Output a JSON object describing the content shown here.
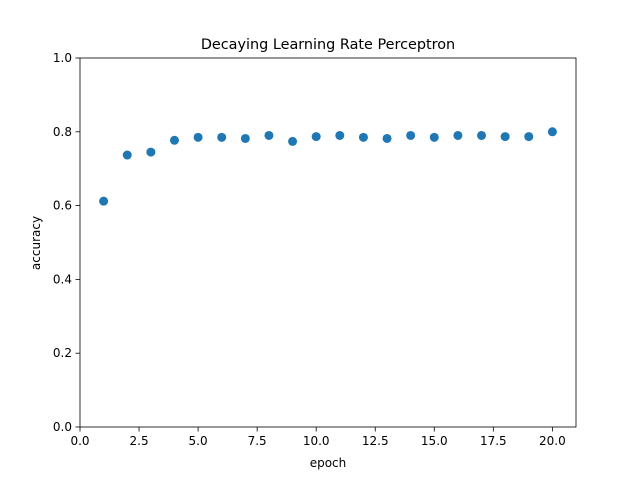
{
  "chart_data": {
    "type": "scatter",
    "title": "Decaying Learning Rate Perceptron",
    "xlabel": "epoch",
    "ylabel": "accuracy",
    "xlim": [
      0,
      21
    ],
    "ylim": [
      0,
      1
    ],
    "xticks": [
      0,
      2.5,
      5,
      7.5,
      10,
      12.5,
      15,
      17.5,
      20
    ],
    "xtick_labels": [
      "0.0",
      "2.5",
      "5.0",
      "7.5",
      "10.0",
      "12.5",
      "15.0",
      "17.5",
      "20.0"
    ],
    "yticks": [
      0,
      0.2,
      0.4,
      0.6,
      0.8,
      1.0
    ],
    "ytick_labels": [
      "0.0",
      "0.2",
      "0.4",
      "0.6",
      "0.8",
      "1.0"
    ],
    "grid": false,
    "marker_color": "#1f77b4",
    "x": [
      1,
      2,
      3,
      4,
      5,
      6,
      7,
      8,
      9,
      10,
      11,
      12,
      13,
      14,
      15,
      16,
      17,
      18,
      19,
      20
    ],
    "y": [
      0.612,
      0.737,
      0.745,
      0.777,
      0.785,
      0.785,
      0.782,
      0.79,
      0.774,
      0.787,
      0.79,
      0.785,
      0.782,
      0.79,
      0.785,
      0.79,
      0.79,
      0.787,
      0.787,
      0.8
    ]
  }
}
